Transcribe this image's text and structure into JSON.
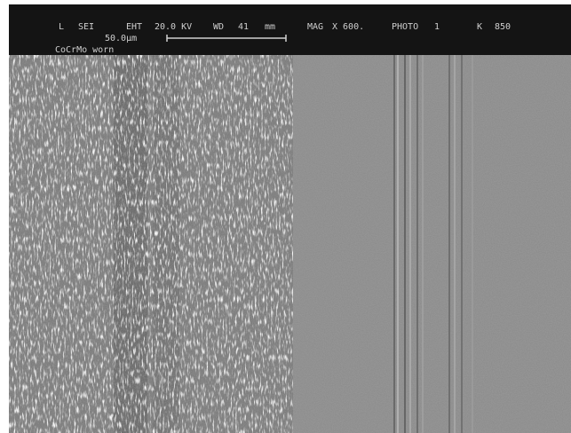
{
  "header": {
    "fields": [
      "L",
      "SEI",
      "EHT",
      "20.0 KV",
      "WD",
      "41",
      "mm",
      "MAG",
      "X 600.",
      "PHOTO",
      "1",
      "K",
      "850"
    ],
    "scale_label": "50.0μm",
    "sample_label": "CoCrMo worn"
  }
}
